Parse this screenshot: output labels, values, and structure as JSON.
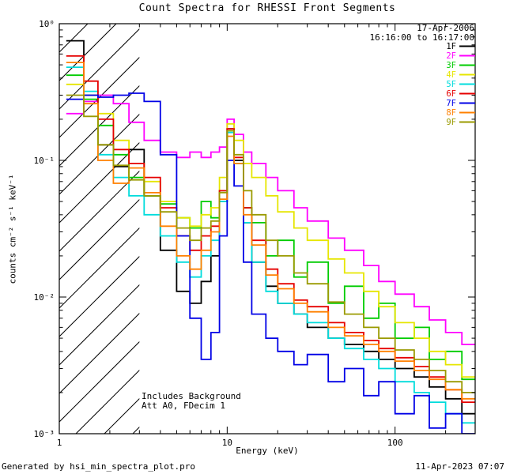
{
  "chart_data": {
    "type": "line",
    "style": "log-log step spectra",
    "title": "Count Spectra for RHESSI Front Segments",
    "xlabel": "Energy (keV)",
    "ylabel": "counts cm⁻² s⁻¹ keV⁻¹",
    "xlim": [
      1,
      300
    ],
    "ylim": [
      0.001,
      1
    ],
    "x_ticks": [
      {
        "value": 1,
        "label": "1"
      },
      {
        "value": 10,
        "label": "10"
      },
      {
        "value": 100,
        "label": "100"
      }
    ],
    "y_ticks": [
      {
        "value": 1,
        "label": "10⁰"
      },
      {
        "value": 0.1,
        "label": "10⁻¹"
      },
      {
        "value": 0.01,
        "label": "10⁻²"
      },
      {
        "value": 0.001,
        "label": "10⁻³"
      }
    ],
    "hatch_region": {
      "x_from": 1,
      "x_to": 3
    },
    "date_label": "17-Apr-2006",
    "time_range_label": "16:16:00 to 16:17:00",
    "annotations": [
      "Includes Background",
      "Att A0, FDecim 1"
    ],
    "legend_position": "upper right inside",
    "grid": false,
    "energies_kev": [
      1.1,
      1.4,
      1.7,
      2.1,
      2.6,
      3.2,
      4,
      5,
      6,
      7,
      8,
      9,
      10,
      11,
      12.5,
      14,
      17,
      20,
      25,
      30,
      40,
      50,
      65,
      80,
      100,
      130,
      160,
      200,
      250
    ],
    "series": [
      {
        "name": "1F",
        "color": "#000000",
        "values": [
          0.75,
          0.3,
          0.13,
          0.09,
          0.12,
          0.055,
          0.022,
          0.011,
          0.009,
          0.013,
          0.02,
          0.05,
          0.17,
          0.1,
          0.035,
          0.018,
          0.012,
          0.009,
          0.0075,
          0.006,
          0.005,
          0.0045,
          0.004,
          0.0035,
          0.003,
          0.0026,
          0.0022,
          0.0018,
          0.0014
        ]
      },
      {
        "name": "2F",
        "color": "#ff00ff",
        "values": [
          0.22,
          0.27,
          0.3,
          0.26,
          0.19,
          0.14,
          0.115,
          0.105,
          0.115,
          0.105,
          0.115,
          0.125,
          0.2,
          0.155,
          0.115,
          0.095,
          0.075,
          0.06,
          0.045,
          0.036,
          0.027,
          0.022,
          0.017,
          0.013,
          0.0105,
          0.0085,
          0.0068,
          0.0055,
          0.0045
        ]
      },
      {
        "name": "3F",
        "color": "#00cc00",
        "values": [
          0.42,
          0.28,
          0.18,
          0.11,
          0.075,
          0.055,
          0.048,
          0.038,
          0.032,
          0.05,
          0.038,
          0.06,
          0.165,
          0.095,
          0.045,
          0.035,
          0.02,
          0.026,
          0.014,
          0.018,
          0.009,
          0.012,
          0.007,
          0.009,
          0.005,
          0.006,
          0.0035,
          0.004,
          0.0025
        ]
      },
      {
        "name": "4F",
        "color": "#e6e600",
        "values": [
          0.36,
          0.3,
          0.22,
          0.14,
          0.095,
          0.07,
          0.05,
          0.038,
          0.033,
          0.04,
          0.045,
          0.075,
          0.185,
          0.14,
          0.095,
          0.075,
          0.055,
          0.042,
          0.032,
          0.026,
          0.019,
          0.015,
          0.011,
          0.0085,
          0.0065,
          0.005,
          0.004,
          0.0032,
          0.0026
        ]
      },
      {
        "name": "5F",
        "color": "#00dcdc",
        "values": [
          0.48,
          0.32,
          0.11,
          0.075,
          0.055,
          0.04,
          0.028,
          0.018,
          0.014,
          0.02,
          0.026,
          0.05,
          0.16,
          0.095,
          0.035,
          0.018,
          0.011,
          0.009,
          0.0075,
          0.0065,
          0.005,
          0.0042,
          0.0035,
          0.003,
          0.0024,
          0.002,
          0.0017,
          0.0014,
          0.0012
        ]
      },
      {
        "name": "6F",
        "color": "#e60000",
        "values": [
          0.58,
          0.38,
          0.2,
          0.12,
          0.095,
          0.075,
          0.045,
          0.028,
          0.022,
          0.028,
          0.033,
          0.06,
          0.17,
          0.105,
          0.045,
          0.026,
          0.016,
          0.0125,
          0.0095,
          0.0085,
          0.0065,
          0.0055,
          0.0048,
          0.0042,
          0.0036,
          0.0031,
          0.0026,
          0.0021,
          0.0017
        ]
      },
      {
        "name": "7F",
        "color": "#0000e6",
        "values": [
          0.28,
          0.3,
          0.29,
          0.3,
          0.31,
          0.27,
          0.11,
          0.028,
          0.007,
          0.0035,
          0.0055,
          0.028,
          0.1,
          0.065,
          0.018,
          0.0075,
          0.005,
          0.004,
          0.0032,
          0.0038,
          0.0024,
          0.003,
          0.0019,
          0.0024,
          0.0014,
          0.0019,
          0.0011,
          0.0014,
          0.001
        ]
      },
      {
        "name": "8F",
        "color": "#ff8000",
        "values": [
          0.52,
          0.26,
          0.1,
          0.068,
          0.088,
          0.058,
          0.033,
          0.02,
          0.016,
          0.022,
          0.03,
          0.052,
          0.15,
          0.095,
          0.04,
          0.024,
          0.0145,
          0.0115,
          0.009,
          0.0078,
          0.006,
          0.0052,
          0.0045,
          0.004,
          0.0034,
          0.0029,
          0.0025,
          0.0021,
          0.0018
        ]
      },
      {
        "name": "9F",
        "color": "#9a9a00",
        "values": [
          0.3,
          0.21,
          0.13,
          0.092,
          0.072,
          0.055,
          0.042,
          0.032,
          0.026,
          0.032,
          0.036,
          0.058,
          0.165,
          0.11,
          0.06,
          0.04,
          0.026,
          0.02,
          0.015,
          0.0125,
          0.0092,
          0.0075,
          0.006,
          0.005,
          0.0041,
          0.0035,
          0.0029,
          0.0024,
          0.002
        ]
      }
    ]
  },
  "footer": {
    "generated_by": "Generated by hsi_min_spectra_plot.pro",
    "generated_at": "11-Apr-2023 07:07"
  }
}
